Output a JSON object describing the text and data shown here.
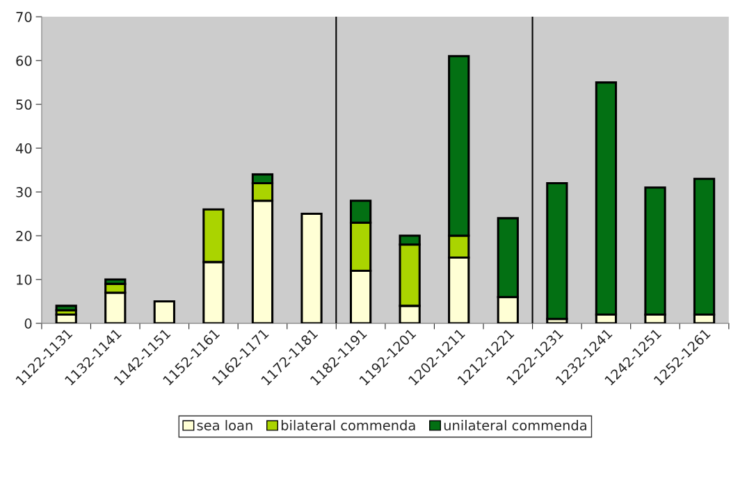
{
  "chart_data": {
    "type": "bar",
    "stacked": true,
    "categories": [
      "1122-1131",
      "1132-1141",
      "1142-1151",
      "1152-1161",
      "1162-1171",
      "1172-1181",
      "1182-1191",
      "1192-1201",
      "1202-1211",
      "1212-1221",
      "1222-1231",
      "1232-1241",
      "1242-1251",
      "1252-1261"
    ],
    "series": [
      {
        "name": "sea loan",
        "color": "#ffffd5",
        "values": [
          2,
          7,
          5,
          14,
          28,
          25,
          12,
          4,
          15,
          6,
          1,
          2,
          2,
          2
        ]
      },
      {
        "name": "bilateral commenda",
        "color": "#aad400",
        "values": [
          1,
          2,
          0,
          12,
          4,
          0,
          11,
          14,
          5,
          0,
          0,
          0,
          0,
          0
        ]
      },
      {
        "name": "unilateral commenda",
        "color": "#037013",
        "values": [
          1,
          1,
          0,
          0,
          2,
          0,
          5,
          2,
          41,
          18,
          31,
          53,
          29,
          31
        ]
      }
    ],
    "ylim": [
      0,
      70
    ],
    "yticks": [
      0,
      10,
      20,
      30,
      40,
      50,
      60,
      70
    ],
    "grid": false,
    "legend": "bottom"
  }
}
